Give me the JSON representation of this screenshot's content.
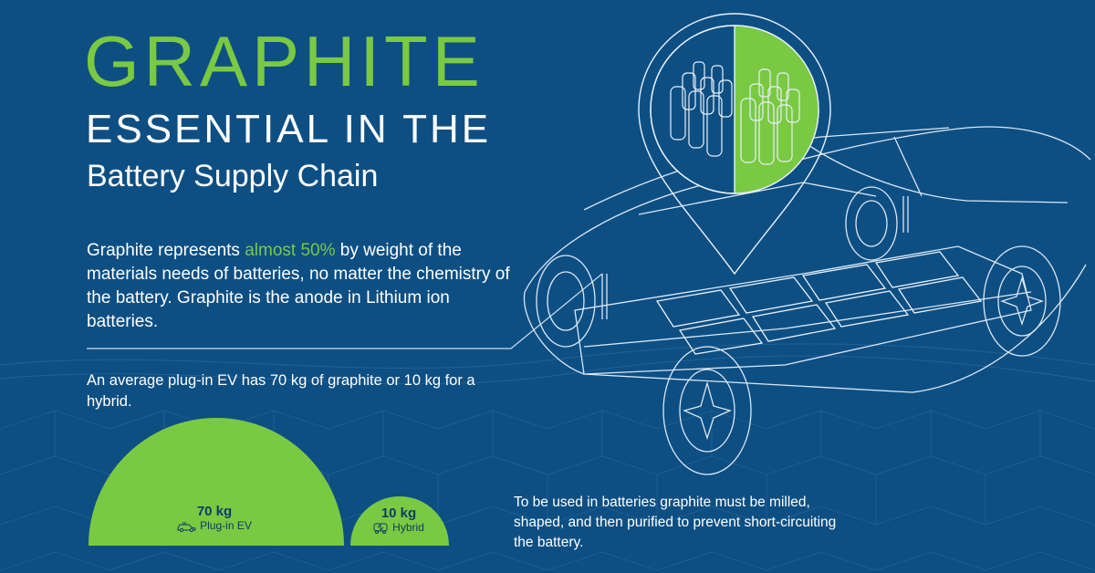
{
  "title": {
    "main": "GRAPHITE",
    "line2": "ESSENTIAL IN THE",
    "line3": "Battery Supply Chain"
  },
  "intro": {
    "before": "Graphite represents ",
    "highlight": "almost 50%",
    "after": " by weight of the materials needs of batteries, no matter the chemistry of the battery. Graphite is the anode in Lithium ion batteries."
  },
  "average_text": "An average plug-in EV has 70 kg of graphite or 10 kg for a hybrid.",
  "comparison": {
    "ev": {
      "amount": "70 kg",
      "label": "Plug-in EV",
      "value_kg": 70,
      "icon": "plug-car-icon"
    },
    "hybrid": {
      "amount": "10 kg",
      "label": "Hybrid",
      "value_kg": 10,
      "icon": "hybrid-car-icon"
    }
  },
  "process_text": "To be used in batteries graphite must be milled, shaped, and then purified to prevent short-circuiting the battery.",
  "colors": {
    "background": "#0e4f83",
    "accent_green": "#7ac943",
    "text": "#ffffff",
    "label_dark": "#0e3c66"
  }
}
